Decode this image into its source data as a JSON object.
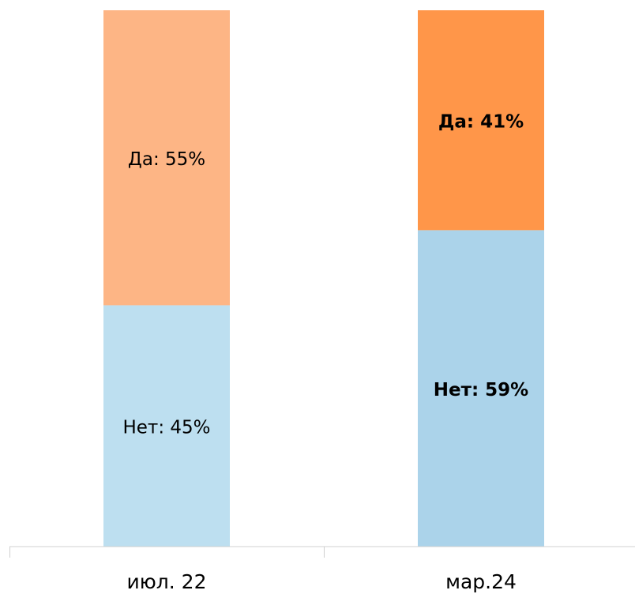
{
  "chart_data": {
    "type": "stacked-bar",
    "categories": [
      "июл. 22",
      "мар.24"
    ],
    "series": [
      {
        "colors": [
          "#bddff0",
          "#abd3ea"
        ],
        "values": [
          45,
          59
        ],
        "value_labels": [
          "Нет: 45%",
          "Нет: 59%"
        ]
      },
      {
        "colors": [
          "#fdb585",
          "#ff9649"
        ],
        "values": [
          55,
          41
        ],
        "value_labels": [
          "Да: 55%",
          "Да: 41%"
        ]
      }
    ],
    "label_weights": [
      "normal",
      "bold"
    ],
    "ylim": [
      0,
      100
    ]
  }
}
